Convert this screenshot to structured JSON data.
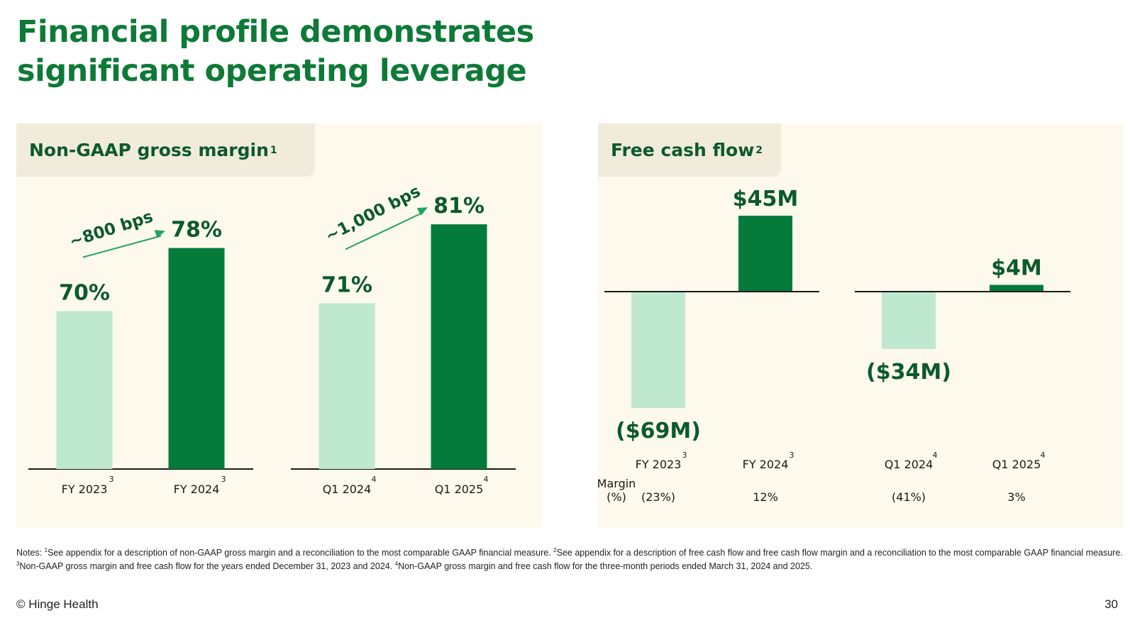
{
  "title": {
    "line1": "Financial profile demonstrates",
    "line2": "significant operating leverage"
  },
  "colors": {
    "dark_green": "#047a3b",
    "light_green": "#bfe8d1",
    "text_green": "#0c5a2c",
    "arrow": "#1fa55a"
  },
  "left_panel": {
    "header": "Non-GAAP gross margin",
    "header_sup": "1"
  },
  "right_panel": {
    "header": "Free cash flow",
    "header_sup": "2"
  },
  "chart_data": [
    {
      "type": "bar",
      "groups": [
        {
          "categories": [
            "FY 2023",
            "FY 2024"
          ],
          "category_sups": [
            "3",
            "3"
          ],
          "values": [
            70,
            78
          ],
          "value_labels": [
            "70%",
            "78%"
          ],
          "arrow_label": "~800 bps"
        },
        {
          "categories": [
            "Q1 2024",
            "Q1 2025"
          ],
          "category_sups": [
            "4",
            "4"
          ],
          "values": [
            71,
            81
          ],
          "value_labels": [
            "71%",
            "81%"
          ],
          "arrow_label": "~1,000 bps"
        }
      ],
      "ylim": [
        50,
        82
      ]
    },
    {
      "type": "bar",
      "groups": [
        {
          "categories": [
            "FY 2023",
            "FY 2024"
          ],
          "category_sups": [
            "3",
            "3"
          ],
          "values": [
            -69,
            45
          ],
          "value_labels": [
            "($69M)",
            "$45M"
          ],
          "margins": [
            "(23%)",
            "12%"
          ]
        },
        {
          "categories": [
            "Q1 2024",
            "Q1 2025"
          ],
          "category_sups": [
            "4",
            "4"
          ],
          "values": [
            -34,
            4
          ],
          "value_labels": [
            "($34M)",
            "$4M"
          ],
          "margins": [
            "(41%)",
            "3%"
          ]
        }
      ],
      "margin_label_line1": "Margin",
      "margin_label_line2": "(%)"
    }
  ],
  "notes": {
    "prefix": "Notes: ",
    "n1": "See appendix for a description of non-GAAP gross margin and a reconciliation to the most comparable GAAP financial measure. ",
    "n2": "See appendix for a description of free cash flow and free cash flow margin and a reconciliation to the most comparable GAAP financial measure. ",
    "n3": "Non-GAAP gross margin and free cash flow for the years ended December 31, 2023 and 2024. ",
    "n4": "Non-GAAP gross margin and free cash flow for the three-month periods ended March 31, 2024 and 2025."
  },
  "footer": {
    "copyright": "© Hinge Health",
    "page_number": "30"
  }
}
